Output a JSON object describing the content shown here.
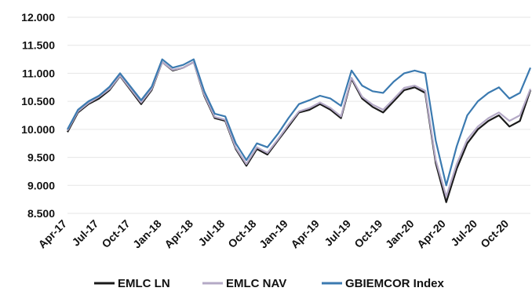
{
  "chart_data": {
    "type": "line",
    "title": "",
    "xlabel": "",
    "ylabel": "",
    "y_ticks": [
      "12.000",
      "11.500",
      "11.000",
      "10.500",
      "10.000",
      "9.500",
      "9.000",
      "8.500"
    ],
    "y_tick_values": [
      12000,
      11500,
      11000,
      10500,
      10000,
      9500,
      9000,
      8500
    ],
    "ylim": [
      8500,
      12000
    ],
    "x_ticks": [
      "Apr-17",
      "Jul-17",
      "Oct-17",
      "Jan-18",
      "Apr-18",
      "Jul-18",
      "Oct-18",
      "Jan-19",
      "Apr-19",
      "Jul-19",
      "Oct-19",
      "Jan-20",
      "Apr-20",
      "Jul-20",
      "Oct-20"
    ],
    "x_tick_index": [
      0,
      3,
      6,
      9,
      12,
      15,
      18,
      21,
      24,
      27,
      30,
      33,
      36,
      39,
      42
    ],
    "x": [
      "Apr-17",
      "May-17",
      "Jun-17",
      "Jul-17",
      "Aug-17",
      "Sep-17",
      "Oct-17",
      "Nov-17",
      "Dec-17",
      "Jan-18",
      "Feb-18",
      "Mar-18",
      "Apr-18",
      "May-18",
      "Jun-18",
      "Jul-18",
      "Aug-18",
      "Sep-18",
      "Oct-18",
      "Nov-18",
      "Dec-18",
      "Jan-19",
      "Feb-19",
      "Mar-19",
      "Apr-19",
      "May-19",
      "Jun-19",
      "Jul-19",
      "Aug-19",
      "Sep-19",
      "Oct-19",
      "Nov-19",
      "Dec-19",
      "Jan-20",
      "Feb-20",
      "Mar-20",
      "Apr-20",
      "May-20",
      "Jun-20",
      "Jul-20",
      "Aug-20",
      "Sep-20",
      "Oct-20",
      "Nov-20",
      "Dec-20"
    ],
    "series": [
      {
        "name": "EMLC LN",
        "color": "#1a1a1a",
        "values": [
          9950,
          10300,
          10450,
          10550,
          10700,
          10950,
          10700,
          10450,
          10700,
          11200,
          11050,
          11100,
          11200,
          10600,
          10200,
          10150,
          9650,
          9350,
          9650,
          9550,
          9800,
          10050,
          10300,
          10350,
          10450,
          10350,
          10200,
          10900,
          10550,
          10400,
          10300,
          10500,
          10700,
          10750,
          10650,
          9400,
          8700,
          9300,
          9750,
          10000,
          10150,
          10250,
          10050,
          10150,
          10700
        ]
      },
      {
        "name": "EMLC NAV",
        "color": "#b4a9c6",
        "values": [
          9980,
          10320,
          10470,
          10580,
          10720,
          10960,
          10720,
          10480,
          10720,
          11200,
          11060,
          11100,
          11200,
          10620,
          10220,
          10170,
          9670,
          9380,
          9680,
          9580,
          9820,
          10080,
          10320,
          10380,
          10480,
          10380,
          10230,
          10920,
          10580,
          10440,
          10350,
          10540,
          10740,
          10780,
          10690,
          9450,
          8800,
          9380,
          9820,
          10050,
          10200,
          10300,
          10150,
          10250,
          10720
        ]
      },
      {
        "name": "GBIEMCOR Index",
        "color": "#3b7ab0",
        "values": [
          10000,
          10350,
          10500,
          10600,
          10760,
          11000,
          10760,
          10520,
          10760,
          11250,
          11100,
          11150,
          11250,
          10680,
          10280,
          10230,
          9750,
          9450,
          9750,
          9680,
          9920,
          10200,
          10450,
          10520,
          10600,
          10550,
          10420,
          11050,
          10780,
          10680,
          10650,
          10850,
          11000,
          11050,
          11000,
          9800,
          9000,
          9700,
          10250,
          10500,
          10650,
          10750,
          10550,
          10650,
          11100
        ]
      }
    ],
    "grid": true,
    "legend_position": "bottom"
  }
}
